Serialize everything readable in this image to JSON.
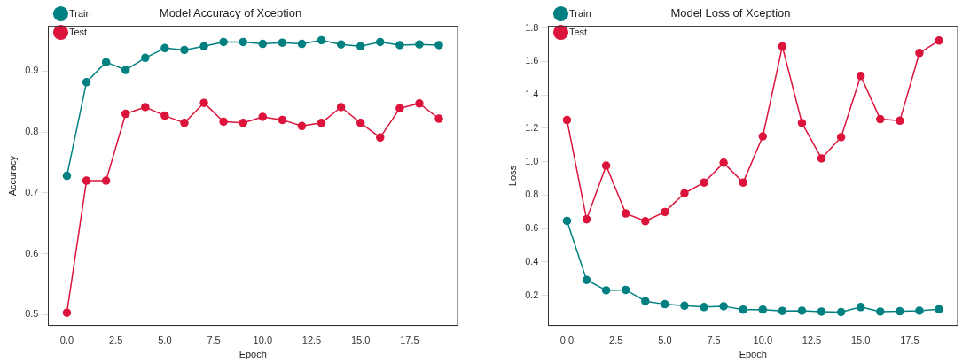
{
  "chart_data": [
    {
      "type": "line",
      "title": "Model Accuracy of Xception",
      "xlabel": "Epoch",
      "ylabel": "Accuracy",
      "x": [
        0,
        1,
        2,
        3,
        4,
        5,
        6,
        7,
        8,
        9,
        10,
        11,
        12,
        13,
        14,
        15,
        16,
        17,
        18,
        19
      ],
      "series": [
        {
          "name": "Train",
          "color": "#008080",
          "values": [
            0.728,
            0.882,
            0.915,
            0.902,
            0.922,
            0.938,
            0.935,
            0.941,
            0.948,
            0.948,
            0.945,
            0.947,
            0.945,
            0.951,
            0.944,
            0.941,
            0.948,
            0.943,
            0.944,
            0.943
          ]
        },
        {
          "name": "Test",
          "color": "#dc143c",
          "values": [
            0.503,
            0.72,
            0.72,
            0.83,
            0.841,
            0.827,
            0.815,
            0.848,
            0.817,
            0.815,
            0.825,
            0.82,
            0.81,
            0.815,
            0.841,
            0.815,
            0.791,
            0.839,
            0.847,
            0.822
          ]
        }
      ],
      "xlim": [
        -0.95,
        19.95
      ],
      "xticks": [
        {
          "value": 0,
          "label": "0.0"
        },
        {
          "value": 2.5,
          "label": "2.5"
        },
        {
          "value": 5,
          "label": "5.0"
        },
        {
          "value": 7.5,
          "label": "7.5"
        },
        {
          "value": 10,
          "label": "10.0"
        },
        {
          "value": 12.5,
          "label": "12.5"
        },
        {
          "value": 15,
          "label": "15.0"
        },
        {
          "value": 17.5,
          "label": "17.5"
        }
      ],
      "ylim": [
        0.482,
        0.974
      ],
      "yticks": [
        0.5,
        0.6,
        0.7,
        0.8,
        0.9
      ],
      "legend": "top left",
      "marker": "circle",
      "line_style": "solid"
    },
    {
      "type": "line",
      "title": "Model Loss of Xception",
      "xlabel": "Epoch",
      "ylabel": "Loss",
      "x": [
        0,
        1,
        2,
        3,
        4,
        5,
        6,
        7,
        8,
        9,
        10,
        11,
        12,
        13,
        14,
        15,
        16,
        17,
        18,
        19
      ],
      "series": [
        {
          "name": "Train",
          "color": "#008080",
          "values": [
            0.646,
            0.292,
            0.23,
            0.233,
            0.165,
            0.147,
            0.138,
            0.13,
            0.135,
            0.115,
            0.115,
            0.107,
            0.108,
            0.103,
            0.1,
            0.13,
            0.103,
            0.105,
            0.108,
            0.117
          ]
        },
        {
          "name": "Test",
          "color": "#dc143c",
          "values": [
            1.249,
            0.655,
            0.976,
            0.69,
            0.644,
            0.699,
            0.811,
            0.875,
            0.993,
            0.875,
            1.151,
            1.689,
            1.231,
            1.019,
            1.146,
            1.513,
            1.254,
            1.245,
            1.65,
            1.724
          ]
        }
      ],
      "xlim": [
        -0.95,
        19.95
      ],
      "xticks": [
        {
          "value": 0,
          "label": "0.0"
        },
        {
          "value": 2.5,
          "label": "2.5"
        },
        {
          "value": 5,
          "label": "5.0"
        },
        {
          "value": 7.5,
          "label": "7.5"
        },
        {
          "value": 10,
          "label": "10.0"
        },
        {
          "value": 12.5,
          "label": "12.5"
        },
        {
          "value": 15,
          "label": "15.0"
        },
        {
          "value": 17.5,
          "label": "17.5"
        }
      ],
      "ylim": [
        0.02,
        1.81
      ],
      "yticks": [
        {
          "value": 0.2,
          "label": "0.2"
        },
        {
          "value": 0.4,
          "label": "0.4"
        },
        {
          "value": 0.6,
          "label": "0.6"
        },
        {
          "value": 0.8,
          "label": "0.8"
        },
        {
          "value": 1.0,
          "label": "1.0"
        },
        {
          "value": 1.2,
          "label": "1.2"
        },
        {
          "value": 1.4,
          "label": "1.4"
        },
        {
          "value": 1.6,
          "label": "1.6"
        },
        {
          "value": 1.8,
          "label": "1.8"
        }
      ],
      "legend": "top left",
      "marker": "circle",
      "line_style": "solid"
    }
  ]
}
